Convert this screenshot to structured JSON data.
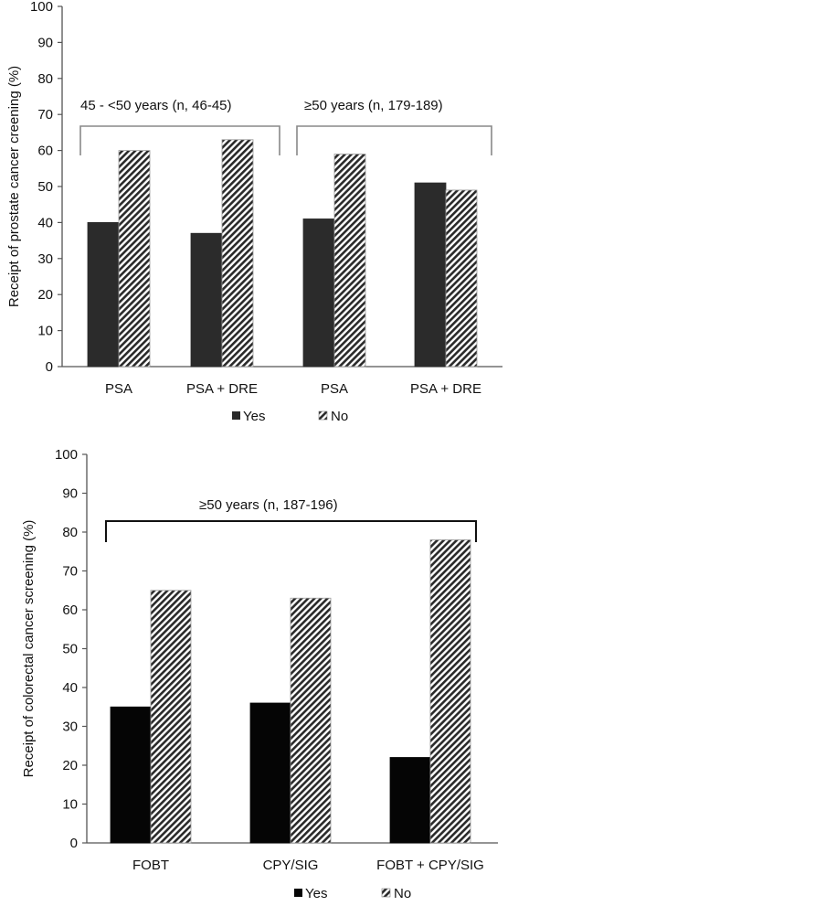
{
  "chart_data": [
    {
      "type": "bar",
      "ylabel": "Receipt of prostate cancer creening (%)",
      "ylim": [
        0,
        100
      ],
      "yticks": [
        0,
        10,
        20,
        30,
        40,
        50,
        60,
        70,
        80,
        90,
        100
      ],
      "grid": false,
      "legend_position": "bottom",
      "categories": [
        "PSA",
        "PSA + DRE",
        "PSA",
        "PSA + DRE"
      ],
      "series": [
        {
          "name": "Yes",
          "values": [
            40,
            37,
            41,
            51
          ],
          "color": "#2b2b2b",
          "pattern": "solid"
        },
        {
          "name": "No",
          "values": [
            60,
            63,
            59,
            49
          ],
          "color": "#ffffff",
          "pattern": "diagonal-hatch"
        }
      ],
      "annotations": [
        {
          "label": "45 - <50 years (n, 46-45)",
          "spans_categories": [
            0,
            1
          ]
        },
        {
          "label": "≥50 years (n, 179-189)",
          "spans_categories": [
            2,
            3
          ]
        }
      ]
    },
    {
      "type": "bar",
      "ylabel": "Receipt of colorectal cancer screening (%)",
      "ylim": [
        0,
        100
      ],
      "yticks": [
        0,
        10,
        20,
        30,
        40,
        50,
        60,
        70,
        80,
        90,
        100
      ],
      "grid": false,
      "legend_position": "bottom",
      "categories": [
        "FOBT",
        "CPY/SIG",
        "FOBT + CPY/SIG"
      ],
      "series": [
        {
          "name": "Yes",
          "values": [
            35,
            36,
            22
          ],
          "color": "#050505",
          "pattern": "solid"
        },
        {
          "name": "No",
          "values": [
            65,
            63,
            78
          ],
          "color": "#ffffff",
          "pattern": "diagonal-hatch"
        }
      ],
      "annotations": [
        {
          "label": "≥50 years (n, 187-196)",
          "spans_categories": [
            0,
            2
          ]
        }
      ]
    }
  ]
}
